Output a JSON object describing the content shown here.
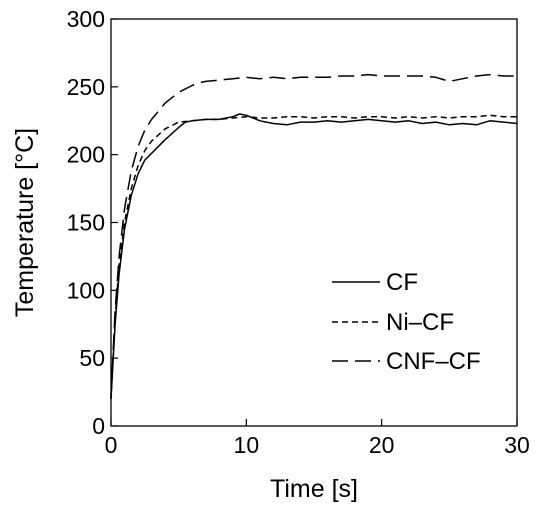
{
  "chart_data": {
    "type": "line",
    "title": "",
    "xlabel": "Time [s]",
    "ylabel": "Temperature [°C]",
    "xlim": [
      0,
      30
    ],
    "ylim": [
      0,
      300
    ],
    "xticks": [
      0,
      10,
      20,
      30
    ],
    "yticks": [
      0,
      50,
      100,
      150,
      200,
      250,
      300
    ],
    "grid": false,
    "legend_position": "lower-right",
    "series": [
      {
        "name": "CF",
        "line_style": "solid",
        "color": "#000000",
        "x": [
          0,
          0.3,
          0.6,
          1,
          1.5,
          2,
          2.5,
          3,
          4,
          5,
          5.5,
          6,
          7,
          8,
          9,
          9.5,
          10,
          10.5,
          11,
          12,
          13,
          14,
          15,
          16,
          17,
          18,
          19,
          20,
          21,
          22,
          23,
          24,
          25,
          26,
          27,
          28,
          29,
          30
        ],
        "y": [
          20,
          75,
          112,
          145,
          170,
          186,
          196,
          201,
          211,
          220,
          224,
          225,
          226,
          226,
          228,
          230,
          229,
          227,
          225,
          223,
          222,
          224,
          224,
          225,
          224,
          225,
          226,
          225,
          224,
          225,
          223,
          224,
          222,
          223,
          222,
          225,
          224,
          223
        ]
      },
      {
        "name": "Ni–CF",
        "line_style": "dashed",
        "color": "#000000",
        "x": [
          0,
          0.3,
          0.6,
          1,
          1.5,
          2,
          2.5,
          3,
          4,
          5,
          6,
          7,
          8,
          9,
          10,
          11,
          12,
          13,
          14,
          15,
          16,
          17,
          18,
          19,
          20,
          21,
          22,
          23,
          24,
          25,
          26,
          27,
          28,
          29,
          30
        ],
        "y": [
          20,
          80,
          118,
          150,
          175,
          192,
          203,
          210,
          219,
          224,
          225,
          226,
          226,
          227,
          228,
          227,
          227,
          228,
          228,
          227,
          228,
          228,
          227,
          228,
          228,
          227,
          228,
          227,
          228,
          227,
          228,
          228,
          229,
          228,
          228
        ]
      },
      {
        "name": "CNF–CF",
        "line_style": "long-dashed",
        "color": "#000000",
        "x": [
          0,
          0.3,
          0.6,
          1,
          1.5,
          2,
          2.5,
          3,
          3.5,
          4,
          5,
          6,
          6.5,
          7,
          8,
          9,
          10,
          11,
          12,
          13,
          14,
          15,
          16,
          17,
          18,
          19,
          20,
          21,
          22,
          23,
          24,
          25,
          26,
          27,
          28,
          29,
          30
        ],
        "y": [
          22,
          85,
          125,
          160,
          188,
          206,
          218,
          226,
          232,
          238,
          246,
          251,
          253,
          254,
          255,
          256,
          257,
          256,
          257,
          256,
          257,
          257,
          257,
          258,
          258,
          259,
          258,
          258,
          258,
          258,
          257,
          254,
          256,
          258,
          259,
          258,
          258
        ]
      }
    ]
  }
}
